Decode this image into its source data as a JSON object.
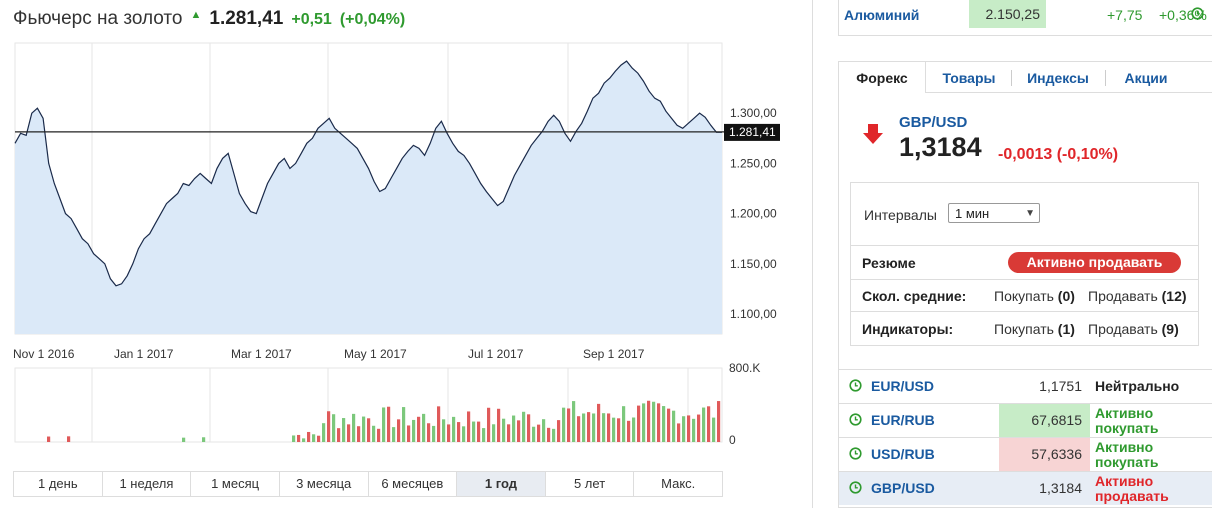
{
  "quote": {
    "title": "Фьючерс на золото",
    "price": "1.281,41",
    "change": "+0,51",
    "change_pct": "(+0,04%)"
  },
  "chart_data": {
    "type": "area",
    "x_ticks": [
      "Nov 1 2016",
      "Jan 1 2017",
      "Mar 1 2017",
      "May 1 2017",
      "Jul 1 2017",
      "Sep 1 2017"
    ],
    "y_ticks": [
      "1.300,00",
      "1.250,00",
      "1.200,00",
      "1.150,00",
      "1.100,00"
    ],
    "ylim": [
      1080,
      1370
    ],
    "current_label": "1.281,41",
    "current_value": 1281.41,
    "series": [
      {
        "values": [
          1270,
          1280,
          1278,
          1300,
          1305,
          1295,
          1250,
          1230,
          1215,
          1200,
          1195,
          1185,
          1175,
          1170,
          1160,
          1155,
          1150,
          1135,
          1128,
          1130,
          1138,
          1150,
          1165,
          1175,
          1180,
          1190,
          1200,
          1210,
          1215,
          1220,
          1230,
          1228,
          1235,
          1240,
          1235,
          1230,
          1245,
          1255,
          1260,
          1240,
          1220,
          1210,
          1202,
          1200,
          1215,
          1230,
          1240,
          1250,
          1255,
          1245,
          1250,
          1260,
          1270,
          1275,
          1285,
          1290,
          1295,
          1285,
          1280,
          1275,
          1270,
          1265,
          1255,
          1245,
          1232,
          1222,
          1225,
          1235,
          1245,
          1255,
          1262,
          1268,
          1265,
          1258,
          1270,
          1285,
          1292,
          1280,
          1270,
          1262,
          1258,
          1250,
          1240,
          1230,
          1222,
          1215,
          1208,
          1212,
          1225,
          1238,
          1248,
          1258,
          1268,
          1275,
          1282,
          1292,
          1298,
          1292,
          1280,
          1272,
          1282,
          1290,
          1302,
          1315,
          1320,
          1330,
          1335,
          1342,
          1348,
          1352,
          1345,
          1340,
          1332,
          1322,
          1315,
          1312,
          1302,
          1295,
          1288,
          1285,
          1290,
          1295,
          1300,
          1296,
          1288,
          1281,
          1281
        ]
      }
    ],
    "volume": {
      "max_label": "800.K",
      "zero_label": "0",
      "ylim": [
        0,
        800000
      ]
    }
  },
  "periods": [
    "1 день",
    "1 неделя",
    "1 месяц",
    "3 месяца",
    "6 месяцев",
    "1 год",
    "5 лет",
    "Макс."
  ],
  "active_period": 5,
  "aluminum": {
    "name": "Алюминий",
    "value": "2.150,25",
    "change": "+7,75",
    "change_pct": "+0,36%"
  },
  "panel": {
    "tabs": [
      "Форекс",
      "Товары",
      "Индексы",
      "Акции"
    ],
    "pair": {
      "name": "GBP/USD",
      "price": "1,3184",
      "change": "-0,0013 (-0,10%)"
    },
    "interval_label": "Интервалы",
    "interval_value": "1 мин",
    "summary_label": "Резюме",
    "summary_value": "Активно продавать",
    "ma_label": "Скол. средние:",
    "ma_buy": "Покупать",
    "ma_buy_count": "(0)",
    "ma_sell": "Продавать",
    "ma_sell_count": "(12)",
    "ind_label": "Индикаторы:",
    "ind_buy": "Покупать",
    "ind_buy_count": "(1)",
    "ind_sell": "Продавать",
    "ind_sell_count": "(9)"
  },
  "rates": [
    {
      "name": "EUR/USD",
      "value": "1,1751",
      "status": "Нейтрально",
      "bg": "",
      "status_color": "n"
    },
    {
      "name": "EUR/RUB",
      "value": "67,6815",
      "status": "Активно покупать",
      "bg": "g",
      "status_color": "g"
    },
    {
      "name": "USD/RUB",
      "value": "57,6336",
      "status": "Активно покупать",
      "bg": "r",
      "status_color": "g"
    },
    {
      "name": "GBP/USD",
      "value": "1,3184",
      "status": "Активно продавать",
      "bg": "",
      "status_color": "r"
    }
  ],
  "colors": {
    "up": "#2f9a2f",
    "down": "#e0262a",
    "link": "#1a5aa0",
    "area": "#dbe9f8",
    "line": "#1a2a4a"
  }
}
